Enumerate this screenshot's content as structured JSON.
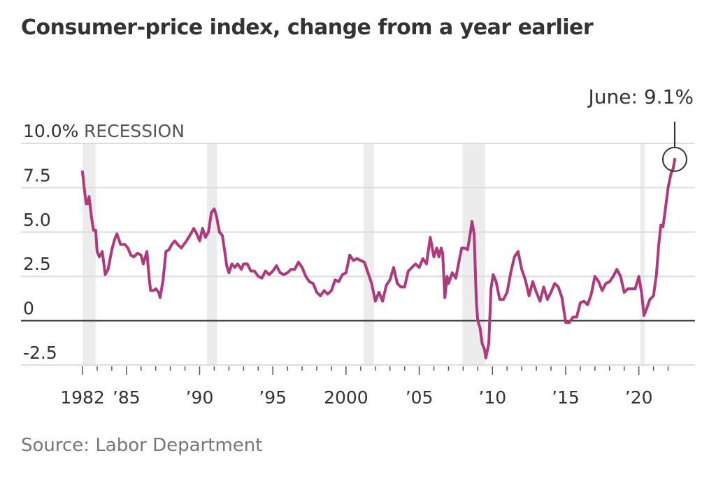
{
  "title": "Consumer-price index, change from a year earlier",
  "source": "Source: Labor Department",
  "colors": {
    "line": "#b0387c",
    "recession": "#ececec",
    "grid": "#dddddd",
    "zero": "#333333",
    "text": "#333333"
  },
  "chart_data": {
    "type": "line",
    "title": "Consumer-price index, change from a year earlier",
    "xlabel": "",
    "ylabel": "",
    "ylim": [
      -2.5,
      10.0
    ],
    "xlim": [
      1982.0,
      2022.5
    ],
    "y_ticks": [
      {
        "value": 10.0,
        "label": "10.0%"
      },
      {
        "value": 7.5,
        "label": "7.5"
      },
      {
        "value": 5.0,
        "label": "5.0"
      },
      {
        "value": 2.5,
        "label": "2.5"
      },
      {
        "value": 0,
        "label": "0"
      },
      {
        "value": -2.5,
        "label": "-2.5"
      }
    ],
    "x_ticks": [
      {
        "value": 1982,
        "label": "1982"
      },
      {
        "value": 1985,
        "label": "’85"
      },
      {
        "value": 1990,
        "label": "’90"
      },
      {
        "value": 1995,
        "label": "’95"
      },
      {
        "value": 2000,
        "label": "2000"
      },
      {
        "value": 2005,
        "label": "’05"
      },
      {
        "value": 2010,
        "label": "’10"
      },
      {
        "value": 2015,
        "label": "’15"
      },
      {
        "value": 2020,
        "label": "’20"
      }
    ],
    "recession_label": "RECESSION",
    "recessions": [
      [
        1982.0,
        1982.9
      ],
      [
        1990.5,
        1991.2
      ],
      [
        2001.2,
        2001.9
      ],
      [
        2007.95,
        2009.5
      ],
      [
        2020.1,
        2020.4
      ]
    ],
    "annotation": {
      "label": "June: 9.1%",
      "x": 2022.45,
      "y": 9.1
    },
    "series": [
      {
        "values": [
          [
            1982.0,
            8.4
          ],
          [
            1982.1,
            7.6
          ],
          [
            1982.25,
            6.6
          ],
          [
            1982.35,
            6.6
          ],
          [
            1982.45,
            7.0
          ],
          [
            1982.6,
            5.9
          ],
          [
            1982.75,
            5.1
          ],
          [
            1982.9,
            5.1
          ],
          [
            1983.0,
            3.9
          ],
          [
            1983.15,
            3.6
          ],
          [
            1983.35,
            3.9
          ],
          [
            1983.55,
            2.6
          ],
          [
            1983.75,
            2.9
          ],
          [
            1984.0,
            4.0
          ],
          [
            1984.2,
            4.6
          ],
          [
            1984.35,
            4.9
          ],
          [
            1984.6,
            4.3
          ],
          [
            1984.9,
            4.3
          ],
          [
            1985.1,
            4.1
          ],
          [
            1985.3,
            3.7
          ],
          [
            1985.5,
            3.6
          ],
          [
            1985.75,
            3.8
          ],
          [
            1986.0,
            3.7
          ],
          [
            1986.15,
            3.2
          ],
          [
            1986.4,
            3.9
          ],
          [
            1986.55,
            2.4
          ],
          [
            1986.65,
            1.7
          ],
          [
            1986.85,
            1.7
          ],
          [
            1987.0,
            1.8
          ],
          [
            1987.2,
            1.6
          ],
          [
            1987.3,
            1.3
          ],
          [
            1987.5,
            2.3
          ],
          [
            1987.7,
            3.9
          ],
          [
            1987.9,
            4.0
          ],
          [
            1988.1,
            4.3
          ],
          [
            1988.3,
            4.5
          ],
          [
            1988.5,
            4.3
          ],
          [
            1988.75,
            4.1
          ],
          [
            1989.1,
            4.5
          ],
          [
            1989.4,
            4.9
          ],
          [
            1989.6,
            5.2
          ],
          [
            1989.8,
            4.9
          ],
          [
            1990.0,
            4.5
          ],
          [
            1990.2,
            5.2
          ],
          [
            1990.4,
            4.7
          ],
          [
            1990.6,
            5.0
          ],
          [
            1990.8,
            6.1
          ],
          [
            1991.0,
            6.3
          ],
          [
            1991.15,
            5.9
          ],
          [
            1991.35,
            5.0
          ],
          [
            1991.55,
            4.8
          ],
          [
            1991.7,
            4.0
          ],
          [
            1991.85,
            3.1
          ],
          [
            1992.0,
            2.7
          ],
          [
            1992.2,
            3.2
          ],
          [
            1992.4,
            3.0
          ],
          [
            1992.6,
            3.2
          ],
          [
            1992.85,
            2.9
          ],
          [
            1993.0,
            3.2
          ],
          [
            1993.25,
            3.2
          ],
          [
            1993.5,
            2.8
          ],
          [
            1993.75,
            2.8
          ],
          [
            1994.0,
            2.5
          ],
          [
            1994.25,
            2.4
          ],
          [
            1994.5,
            2.8
          ],
          [
            1994.75,
            2.6
          ],
          [
            1995.0,
            2.8
          ],
          [
            1995.25,
            3.1
          ],
          [
            1995.5,
            2.7
          ],
          [
            1995.75,
            2.6
          ],
          [
            1996.0,
            2.7
          ],
          [
            1996.25,
            2.9
          ],
          [
            1996.5,
            2.9
          ],
          [
            1996.75,
            3.3
          ],
          [
            1997.0,
            3.0
          ],
          [
            1997.25,
            2.5
          ],
          [
            1997.5,
            2.2
          ],
          [
            1997.75,
            2.1
          ],
          [
            1998.0,
            1.6
          ],
          [
            1998.25,
            1.4
          ],
          [
            1998.5,
            1.7
          ],
          [
            1998.75,
            1.5
          ],
          [
            1999.0,
            1.7
          ],
          [
            1999.25,
            2.3
          ],
          [
            1999.5,
            2.2
          ],
          [
            1999.75,
            2.6
          ],
          [
            2000.0,
            2.7
          ],
          [
            2000.25,
            3.7
          ],
          [
            2000.5,
            3.4
          ],
          [
            2000.75,
            3.5
          ],
          [
            2001.0,
            3.4
          ],
          [
            2001.25,
            3.3
          ],
          [
            2001.5,
            2.7
          ],
          [
            2001.75,
            2.1
          ],
          [
            2002.0,
            1.1
          ],
          [
            2002.25,
            1.6
          ],
          [
            2002.5,
            1.1
          ],
          [
            2002.75,
            2.0
          ],
          [
            2003.0,
            2.3
          ],
          [
            2003.25,
            3.0
          ],
          [
            2003.5,
            2.1
          ],
          [
            2003.75,
            1.9
          ],
          [
            2004.0,
            1.9
          ],
          [
            2004.25,
            2.8
          ],
          [
            2004.5,
            3.0
          ],
          [
            2004.75,
            3.2
          ],
          [
            2005.0,
            3.0
          ],
          [
            2005.25,
            3.5
          ],
          [
            2005.5,
            3.2
          ],
          [
            2005.75,
            4.7
          ],
          [
            2006.0,
            3.6
          ],
          [
            2006.2,
            4.1
          ],
          [
            2006.35,
            3.6
          ],
          [
            2006.5,
            4.1
          ],
          [
            2006.6,
            3.8
          ],
          [
            2006.75,
            1.3
          ],
          [
            2006.9,
            2.5
          ],
          [
            2007.0,
            2.1
          ],
          [
            2007.25,
            2.7
          ],
          [
            2007.5,
            2.4
          ],
          [
            2007.75,
            3.5
          ],
          [
            2007.9,
            4.1
          ],
          [
            2008.1,
            4.1
          ],
          [
            2008.3,
            4.0
          ],
          [
            2008.5,
            5.0
          ],
          [
            2008.6,
            5.6
          ],
          [
            2008.75,
            4.9
          ],
          [
            2008.9,
            1.1
          ],
          [
            2009.0,
            0.0
          ],
          [
            2009.15,
            -0.4
          ],
          [
            2009.3,
            -1.3
          ],
          [
            2009.45,
            -1.6
          ],
          [
            2009.55,
            -2.1
          ],
          [
            2009.75,
            -1.3
          ],
          [
            2009.9,
            1.8
          ],
          [
            2010.05,
            2.6
          ],
          [
            2010.25,
            2.2
          ],
          [
            2010.5,
            1.2
          ],
          [
            2010.75,
            1.2
          ],
          [
            2011.0,
            1.6
          ],
          [
            2011.25,
            2.7
          ],
          [
            2011.5,
            3.6
          ],
          [
            2011.75,
            3.9
          ],
          [
            2012.0,
            2.9
          ],
          [
            2012.25,
            2.3
          ],
          [
            2012.5,
            1.4
          ],
          [
            2012.75,
            2.2
          ],
          [
            2013.0,
            1.6
          ],
          [
            2013.25,
            1.1
          ],
          [
            2013.5,
            1.9
          ],
          [
            2013.75,
            1.2
          ],
          [
            2014.0,
            1.6
          ],
          [
            2014.25,
            2.1
          ],
          [
            2014.5,
            1.9
          ],
          [
            2014.75,
            1.3
          ],
          [
            2015.0,
            -0.1
          ],
          [
            2015.25,
            -0.1
          ],
          [
            2015.5,
            0.2
          ],
          [
            2015.75,
            0.2
          ],
          [
            2016.0,
            1.0
          ],
          [
            2016.25,
            1.1
          ],
          [
            2016.5,
            0.9
          ],
          [
            2016.75,
            1.5
          ],
          [
            2017.0,
            2.5
          ],
          [
            2017.25,
            2.2
          ],
          [
            2017.5,
            1.7
          ],
          [
            2017.75,
            2.1
          ],
          [
            2018.0,
            2.2
          ],
          [
            2018.25,
            2.5
          ],
          [
            2018.5,
            2.9
          ],
          [
            2018.75,
            2.5
          ],
          [
            2019.0,
            1.6
          ],
          [
            2019.25,
            1.8
          ],
          [
            2019.5,
            1.8
          ],
          [
            2019.75,
            1.8
          ],
          [
            2020.0,
            2.5
          ],
          [
            2020.2,
            1.5
          ],
          [
            2020.35,
            0.3
          ],
          [
            2020.5,
            0.6
          ],
          [
            2020.75,
            1.2
          ],
          [
            2021.0,
            1.4
          ],
          [
            2021.2,
            2.6
          ],
          [
            2021.35,
            4.2
          ],
          [
            2021.5,
            5.4
          ],
          [
            2021.65,
            5.3
          ],
          [
            2021.8,
            6.2
          ],
          [
            2022.0,
            7.5
          ],
          [
            2022.2,
            8.3
          ],
          [
            2022.35,
            8.6
          ],
          [
            2022.45,
            9.1
          ]
        ]
      }
    ]
  }
}
